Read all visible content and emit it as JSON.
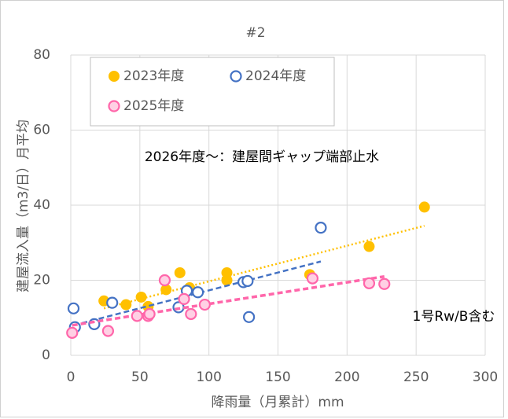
{
  "chart_data": {
    "type": "scatter",
    "title": "#2",
    "x_label": "降雨量（月累計）mm",
    "y_label": "建屋流入量（m3/日）月平均",
    "annotations": [
      "2026年度～：建屋間ギャップ端部止水",
      "1号Rw/B含む"
    ],
    "xlim": [
      0,
      300
    ],
    "xticks": [
      0,
      50,
      100,
      150,
      200,
      250,
      300
    ],
    "ylim": [
      0,
      80
    ],
    "yticks": [
      0,
      20,
      40,
      60,
      80
    ],
    "grid": true,
    "legend": "top-left",
    "series": [
      {
        "name": "2023年度",
        "color": "#ffc000",
        "marker": "filled",
        "x": [
          24,
          40,
          51,
          56,
          69,
          79,
          86,
          113,
          113,
          173,
          216,
          256
        ],
        "values": [
          14.5,
          13.5,
          15.5,
          13,
          17.5,
          22,
          18,
          20,
          22,
          21.5,
          29,
          39.5
        ],
        "trendline": {
          "style": "dotted",
          "x": [
            24,
            256
          ],
          "values": [
            12.5,
            34.5
          ]
        }
      },
      {
        "name": "2024年度",
        "color": "#4472c4",
        "marker": "open",
        "x": [
          2,
          3,
          17,
          30,
          78,
          84,
          92,
          125,
          128,
          129,
          181
        ],
        "values": [
          12.5,
          7.5,
          8.3,
          14,
          12.8,
          17.2,
          16.8,
          19.5,
          19.8,
          10.2,
          34
        ],
        "trendline": {
          "style": "dashed",
          "x": [
            2,
            181
          ],
          "values": [
            8,
            25
          ]
        }
      },
      {
        "name": "2025年度",
        "color": "#ff66aa",
        "marker": "open",
        "x": [
          1,
          27,
          48,
          56,
          57,
          68,
          82,
          87,
          97,
          175,
          216,
          227
        ],
        "values": [
          6,
          6.5,
          10.5,
          10.5,
          11,
          20,
          15,
          11,
          13.5,
          20.5,
          19.2,
          19
        ],
        "trendline": {
          "style": "dashed",
          "x": [
            1,
            227
          ],
          "values": [
            8,
            21
          ]
        }
      }
    ]
  }
}
